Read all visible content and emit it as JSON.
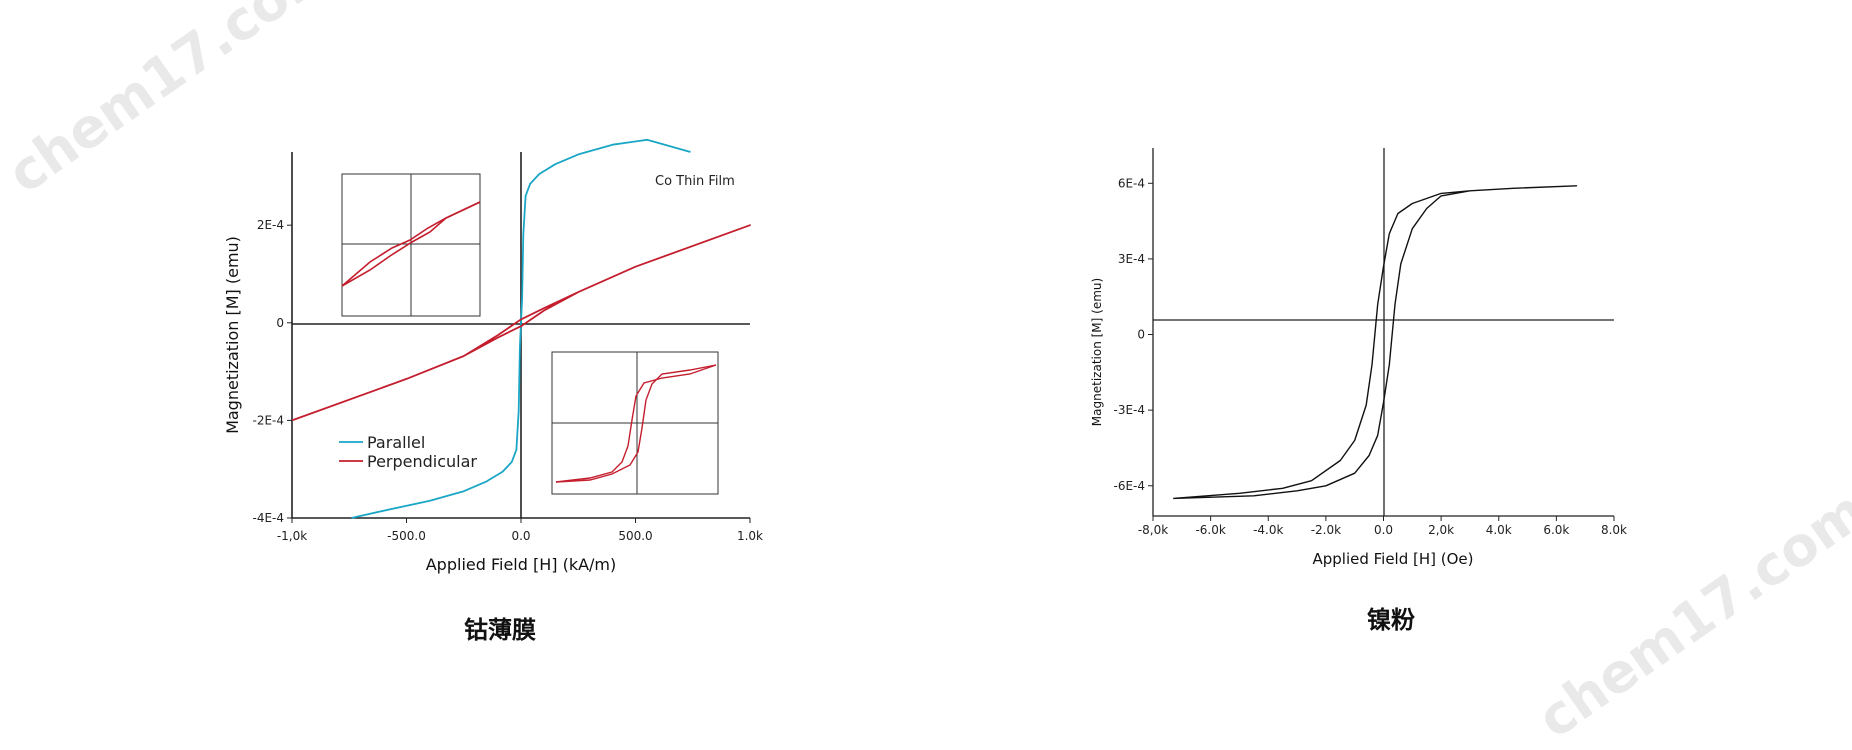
{
  "watermark": "chem17.com",
  "captions": {
    "left": "钴薄膜",
    "right": "镍粉"
  },
  "chart_data": [
    {
      "type": "line",
      "annotation": "Co Thin Film",
      "xlabel": "Applied Field [H] (kA/m)",
      "ylabel": "Magnetization [M] (emu)",
      "xlim": [
        -1000,
        1000
      ],
      "ylim": [
        -0.0004,
        0.00035
      ],
      "x_ticks": [
        -1000,
        -500,
        0,
        500,
        1000
      ],
      "x_tick_labels": [
        "-1,0k",
        "-500.0",
        "0.0",
        "500.0",
        "1.0k"
      ],
      "y_ticks": [
        -0.0004,
        -0.0002,
        0,
        0.0002
      ],
      "y_tick_labels": [
        "-4E-4",
        "-2E-4",
        "0",
        "2E-4"
      ],
      "legend": "bottom-left",
      "colors": {
        "Parallel": "#1aa6c6",
        "Perpendicular": "#c41e2e"
      },
      "series": [
        {
          "name": "Parallel",
          "x": [
            -740,
            -600,
            -400,
            -250,
            -150,
            -80,
            -40,
            -20,
            -10,
            -5,
            0,
            5,
            10,
            20,
            40,
            80,
            150,
            250,
            400,
            550,
            740
          ],
          "y": [
            -0.0004,
            -0.000385,
            -0.000365,
            -0.000345,
            -0.000325,
            -0.000305,
            -0.000285,
            -0.00026,
            -0.00018,
            -5e-05,
            0,
            5e-05,
            0.00018,
            0.00026,
            0.000285,
            0.000305,
            0.000325,
            0.000345,
            0.000365,
            0.000375,
            0.00035
          ]
        },
        {
          "name": "Perpendicular",
          "x": [
            -1000,
            -500,
            -250,
            -100,
            0,
            100,
            250,
            500,
            1000,
            500,
            250,
            100,
            0,
            -100,
            -250,
            -500,
            -1000
          ],
          "y": [
            -0.0002,
            -0.000115,
            -6.8e-05,
            -3e-05,
            -7e-06,
            2.5e-05,
            6.3e-05,
            0.000115,
            0.0002,
            0.000115,
            6.3e-05,
            3e-05,
            7e-06,
            -2.5e-05,
            -6.8e-05,
            -0.000115,
            -0.0002
          ]
        }
      ],
      "insets": [
        {
          "name": "Perpendicular inset",
          "type": "line",
          "loop": "narrow-linear"
        },
        {
          "name": "Parallel inset",
          "type": "line",
          "loop": "square-hysteresis"
        }
      ]
    },
    {
      "type": "line",
      "xlabel": "Applied Field [H] (Oe)",
      "ylabel": "Magnetization [M] (emu)",
      "xlim": [
        -8000,
        8000
      ],
      "ylim": [
        -0.00072,
        0.00074
      ],
      "x_ticks": [
        -8000,
        -6000,
        -4000,
        -2000,
        0,
        2000,
        4000,
        6000,
        8000
      ],
      "x_tick_labels": [
        "-8,0k",
        "-6.0k",
        "-4.0k",
        "-2.0k",
        "0.0",
        "2,0k",
        "4.0k",
        "6.0k",
        "8.0k"
      ],
      "y_ticks": [
        0.0006,
        0.0003,
        0,
        -0.0003,
        -0.0006
      ],
      "y_tick_labels": [
        "6E-4",
        "3E-4",
        "0",
        "-3E-4",
        "-6E-4"
      ],
      "color": "#111111",
      "series": [
        {
          "x": [
            -7300,
            -5000,
            -3500,
            -2500,
            -1500,
            -1000,
            -600,
            -400,
            -200,
            0,
            200,
            500,
            1000,
            2000,
            3000,
            4500,
            6700,
            4500,
            3000,
            2000,
            1500,
            1000,
            600,
            400,
            200,
            0,
            -200,
            -500,
            -1000,
            -2000,
            -3000,
            -4500,
            -7300
          ],
          "y": [
            -0.00065,
            -0.00063,
            -0.00061,
            -0.00058,
            -0.0005,
            -0.00042,
            -0.00028,
            -0.00012,
            0.00012,
            0.00027,
            0.0004,
            0.00048,
            0.00052,
            0.00056,
            0.00057,
            0.00058,
            0.00059,
            0.00058,
            0.00057,
            0.00055,
            0.0005,
            0.00042,
            0.00028,
            0.00012,
            -0.00012,
            -0.00027,
            -0.0004,
            -0.00048,
            -0.00055,
            -0.0006,
            -0.00062,
            -0.00064,
            -0.00065
          ]
        }
      ]
    }
  ]
}
